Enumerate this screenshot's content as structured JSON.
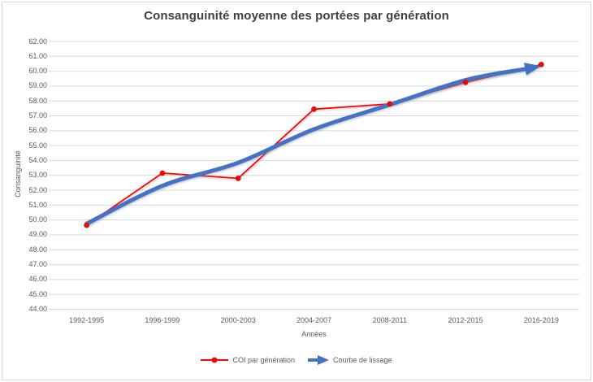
{
  "chart_data": {
    "type": "line",
    "title": "Consanguinité moyenne des portées par génération",
    "xlabel": "Années",
    "ylabel": "Consanguinité",
    "categories": [
      "1992-1995",
      "1996-1999",
      "2000-2003",
      "2004-2007",
      "2008-2011",
      "2012-2015",
      "2016-2019"
    ],
    "series": [
      {
        "name": "COI par génération",
        "style": "line-with-markers",
        "color": "#FF0000",
        "marker_edge_color": "#B02418",
        "values": [
          49.65,
          53.15,
          52.8,
          57.45,
          57.8,
          59.25,
          60.45
        ]
      },
      {
        "name": "Courbe de lissage",
        "style": "smooth-thick-arrow",
        "color": "#4472C4",
        "values": [
          49.75,
          52.3,
          53.85,
          56.1,
          57.75,
          59.4,
          60.35
        ]
      }
    ],
    "ylim": [
      44,
      62
    ],
    "ytick_step": 1,
    "ytick_labels": [
      "62.00",
      "61.00",
      "60.00",
      "59.00",
      "58.00",
      "57.00",
      "56.00",
      "55.00",
      "54.00",
      "53.00",
      "52.00",
      "51.00",
      "50.00",
      "49.00",
      "48.00",
      "47.00",
      "46.00",
      "45.00",
      "44.00"
    ],
    "grid": true,
    "gridline_color": "#D9D9D9",
    "axis_text_color": "#595959",
    "title_color": "#404040",
    "background_color": "#FFFFFF",
    "border_color": "#D9D9D9",
    "legend_position": "bottom"
  }
}
